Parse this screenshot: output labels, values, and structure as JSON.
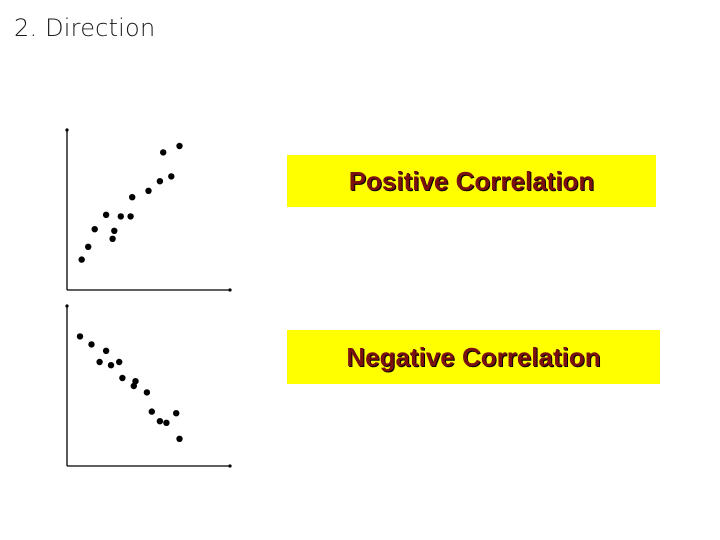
{
  "slide": {
    "title": "2. Direction"
  },
  "labels": {
    "positive": "Positive Correlation",
    "negative": "Negative Correlation"
  },
  "colors": {
    "label_background": "#ffff00",
    "label_text": "#7a1010",
    "points": "#000000",
    "axes": "#000000"
  },
  "chart_data": [
    {
      "type": "scatter",
      "title": "",
      "xlabel": "",
      "ylabel": "",
      "xlim": [
        0,
        10
      ],
      "ylim": [
        0,
        10
      ],
      "grid": false,
      "series": [
        {
          "x": [
            0.9,
            1.3,
            1.7,
            2.4,
            2.8,
            2.9,
            3.3,
            3.9,
            4.0,
            5.0,
            5.7,
            5.9,
            6.4,
            6.9
          ],
          "y": [
            1.9,
            2.7,
            3.8,
            4.7,
            3.2,
            3.7,
            4.6,
            4.6,
            5.8,
            6.2,
            6.8,
            8.6,
            7.1,
            9.0
          ]
        }
      ]
    },
    {
      "type": "scatter",
      "title": "",
      "xlabel": "",
      "ylabel": "",
      "xlim": [
        0,
        10
      ],
      "ylim": [
        0,
        10
      ],
      "grid": false,
      "series": [
        {
          "x": [
            0.8,
            1.5,
            2.0,
            2.4,
            2.7,
            3.2,
            3.4,
            4.1,
            4.2,
            4.9,
            5.2,
            5.7,
            6.1,
            6.7,
            6.9
          ],
          "y": [
            8.1,
            7.6,
            6.5,
            7.2,
            6.3,
            6.5,
            5.5,
            5.0,
            5.3,
            4.6,
            3.4,
            2.8,
            2.7,
            3.3,
            1.7
          ]
        }
      ]
    }
  ]
}
